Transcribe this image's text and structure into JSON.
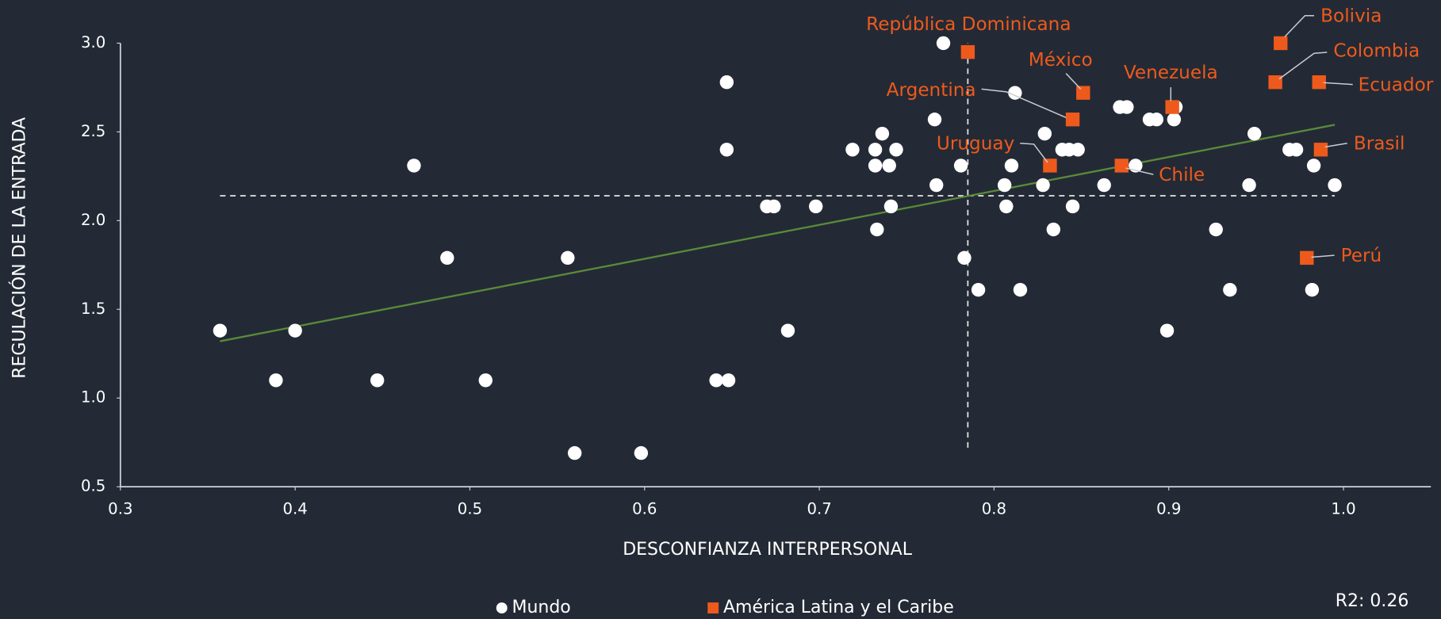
{
  "chart_data": {
    "type": "scatter",
    "x_label": "DESCONFIANZA INTERPERSONAL",
    "y_label": "REGULACIÓN DE LA ENTRADA",
    "annotation": "R2: 0.26",
    "xlim": [
      0.3,
      1.05
    ],
    "ylim": [
      0.5,
      3.0
    ],
    "xticks": [
      0.3,
      0.4,
      0.5,
      0.6,
      0.7,
      0.8,
      0.9,
      {
        "value": 1.0,
        "label": "1.0"
      }
    ],
    "yticks": [
      0.5,
      {
        "value": 1.0,
        "label": "1.0"
      },
      1.5,
      {
        "value": 2.0,
        "label": "2.0"
      },
      2.5,
      {
        "value": 3.0,
        "label": "3.0"
      }
    ],
    "legend": "bottom",
    "series": [
      {
        "name": "Mundo",
        "color": "#ffffff",
        "marker": "circle",
        "x": [
          0.357,
          0.389,
          0.4,
          0.447,
          0.468,
          0.487,
          0.509,
          0.556,
          0.56,
          0.598,
          0.641,
          0.648,
          0.647,
          0.647,
          0.67,
          0.674,
          0.682,
          0.698,
          0.719,
          0.732,
          0.732,
          0.733,
          0.736,
          0.74,
          0.741,
          0.744,
          0.766,
          0.767,
          0.771,
          0.781,
          0.783,
          0.791,
          0.806,
          0.807,
          0.812,
          0.81,
          0.815,
          0.828,
          0.829,
          0.834,
          0.839,
          0.843,
          0.845,
          0.848,
          0.863,
          0.872,
          0.876,
          0.881,
          0.889,
          0.893,
          0.899,
          0.904,
          0.903,
          0.927,
          0.935,
          0.946,
          0.949,
          0.969,
          0.973,
          0.982,
          0.983,
          0.995
        ],
        "values": [
          1.38,
          1.1,
          1.38,
          1.1,
          2.31,
          1.79,
          1.1,
          1.79,
          0.69,
          0.69,
          1.1,
          1.1,
          2.78,
          2.4,
          2.08,
          2.08,
          1.38,
          2.08,
          2.4,
          2.4,
          2.31,
          1.95,
          2.49,
          2.31,
          2.08,
          2.4,
          2.57,
          2.2,
          3.0,
          2.31,
          1.79,
          1.61,
          2.2,
          2.08,
          2.72,
          2.31,
          1.61,
          2.2,
          2.49,
          1.95,
          2.4,
          2.4,
          2.08,
          2.4,
          2.2,
          2.64,
          2.64,
          2.31,
          2.57,
          2.57,
          1.38,
          2.64,
          2.57,
          1.95,
          1.61,
          2.2,
          2.49,
          2.4,
          2.4,
          1.61,
          2.31,
          2.2
        ]
      },
      {
        "name": "América Latina y el Caribe",
        "color": "#ee5a1c",
        "marker": "square",
        "labels": [
          "República Dominicana",
          "México",
          "Argentina",
          "Uruguay",
          "Chile",
          "Venezuela",
          "Bolivia",
          "Colombia",
          "Ecuador",
          "Brasil",
          "Perú"
        ],
        "x": [
          0.785,
          0.851,
          0.845,
          0.832,
          0.873,
          0.902,
          0.964,
          0.961,
          0.986,
          0.987,
          0.979
        ],
        "values": [
          2.95,
          2.72,
          2.57,
          2.31,
          2.31,
          2.64,
          3.0,
          2.78,
          2.78,
          2.4,
          1.79
        ]
      }
    ],
    "trendline": {
      "color": "#5a8a3a",
      "x": [
        0.357,
        0.995
      ],
      "values": [
        1.32,
        2.54
      ]
    },
    "reference_lines": {
      "x": 0.785,
      "y": 2.14,
      "x_span": [
        0.357,
        0.995
      ],
      "y_span": [
        0.72,
        3.0
      ]
    }
  }
}
